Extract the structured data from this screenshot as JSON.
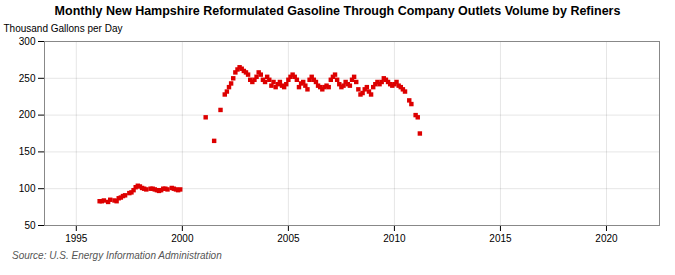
{
  "chart_data": {
    "type": "scatter",
    "title": "Monthly New Hampshire Reformulated Gasoline Through Company Outlets Volume by Refiners",
    "ylabel": "Thousand Gallons per Day",
    "source": "Source: U.S. Energy Information Administration",
    "color": "#dd0000",
    "marker": "square",
    "grid": true,
    "xlim": [
      1993.5,
      2022.5
    ],
    "ylim": [
      50,
      300
    ],
    "xticks": [
      1995,
      2000,
      2005,
      2010,
      2015,
      2020
    ],
    "yticks": [
      50,
      100,
      150,
      200,
      250,
      300
    ],
    "x": [
      1996.1,
      1996.2,
      1996.3,
      1996.5,
      1996.6,
      1996.8,
      1996.9,
      1997.0,
      1997.1,
      1997.2,
      1997.3,
      1997.5,
      1997.6,
      1997.7,
      1997.8,
      1997.9,
      1998.0,
      1998.1,
      1998.2,
      1998.3,
      1998.5,
      1998.6,
      1998.7,
      1998.8,
      1998.9,
      1999.0,
      1999.1,
      1999.2,
      1999.3,
      1999.5,
      1999.6,
      1999.7,
      1999.8,
      1999.9,
      2001.1,
      2001.5,
      2001.8,
      2002.0,
      2002.1,
      2002.2,
      2002.3,
      2002.4,
      2002.5,
      2002.6,
      2002.7,
      2002.8,
      2002.9,
      2003.0,
      2003.1,
      2003.2,
      2003.3,
      2003.4,
      2003.5,
      2003.6,
      2003.7,
      2003.8,
      2003.9,
      2004.0,
      2004.1,
      2004.2,
      2004.3,
      2004.4,
      2004.5,
      2004.6,
      2004.7,
      2004.8,
      2004.9,
      2005.0,
      2005.1,
      2005.2,
      2005.3,
      2005.4,
      2005.5,
      2005.6,
      2005.7,
      2005.8,
      2005.9,
      2006.0,
      2006.1,
      2006.2,
      2006.3,
      2006.4,
      2006.5,
      2006.6,
      2006.7,
      2006.8,
      2006.9,
      2007.0,
      2007.1,
      2007.2,
      2007.3,
      2007.4,
      2007.5,
      2007.6,
      2007.7,
      2007.8,
      2007.9,
      2008.0,
      2008.1,
      2008.2,
      2008.3,
      2008.4,
      2008.5,
      2008.6,
      2008.7,
      2008.8,
      2008.9,
      2009.0,
      2009.1,
      2009.2,
      2009.3,
      2009.4,
      2009.5,
      2009.6,
      2009.7,
      2009.8,
      2009.9,
      2010.0,
      2010.1,
      2010.2,
      2010.3,
      2010.4,
      2010.5,
      2010.7,
      2010.8,
      2011.0,
      2011.1,
      2011.2
    ],
    "values": [
      83,
      83,
      84,
      82,
      85,
      84,
      83,
      87,
      88,
      90,
      91,
      94,
      95,
      98,
      102,
      104,
      103,
      101,
      100,
      99,
      100,
      100,
      99,
      98,
      97,
      98,
      100,
      100,
      99,
      101,
      100,
      99,
      98,
      99,
      197,
      165,
      207,
      228,
      232,
      238,
      243,
      250,
      258,
      262,
      265,
      263,
      260,
      258,
      255,
      248,
      245,
      248,
      252,
      258,
      255,
      248,
      245,
      252,
      248,
      240,
      245,
      238,
      242,
      245,
      240,
      238,
      242,
      248,
      252,
      255,
      252,
      248,
      238,
      243,
      245,
      240,
      235,
      248,
      252,
      248,
      245,
      240,
      238,
      235,
      238,
      240,
      238,
      248,
      252,
      255,
      248,
      242,
      238,
      240,
      245,
      242,
      240,
      248,
      252,
      245,
      235,
      228,
      230,
      235,
      238,
      232,
      228,
      238,
      242,
      245,
      242,
      245,
      250,
      248,
      245,
      242,
      240,
      242,
      245,
      240,
      238,
      235,
      232,
      220,
      215,
      200,
      197,
      175
    ]
  }
}
